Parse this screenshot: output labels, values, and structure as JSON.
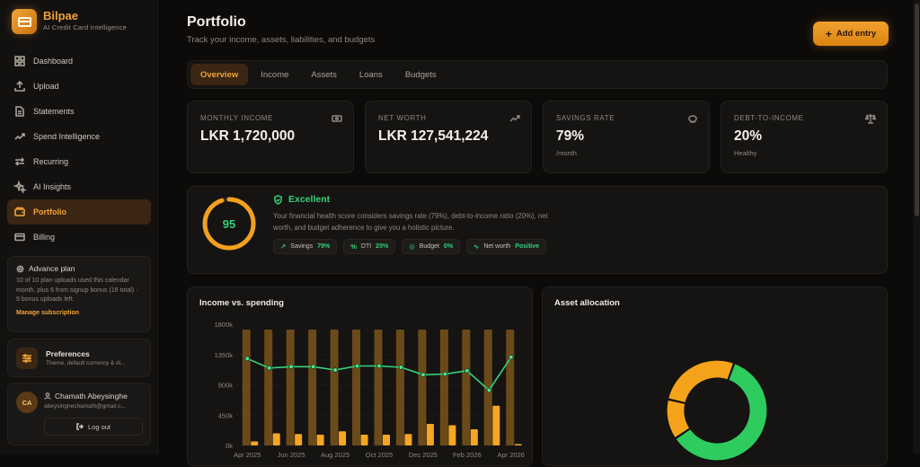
{
  "brand": {
    "name": "Bilpae",
    "tagline": "AI Credit Card Intelligence"
  },
  "nav": [
    {
      "label": "Dashboard",
      "icon": "grid-icon",
      "active": false
    },
    {
      "label": "Upload",
      "icon": "upload-icon",
      "active": false
    },
    {
      "label": "Statements",
      "icon": "document-icon",
      "active": false
    },
    {
      "label": "Spend Intelligence",
      "icon": "trend-icon",
      "active": false
    },
    {
      "label": "Recurring",
      "icon": "repeat-icon",
      "active": false
    },
    {
      "label": "AI Insights",
      "icon": "sparkle-icon",
      "active": false
    },
    {
      "label": "Portfolio",
      "icon": "wallet-icon",
      "active": true
    },
    {
      "label": "Billing",
      "icon": "card-icon",
      "active": false
    }
  ],
  "plan": {
    "title": "Advance plan",
    "description": "10 of 10 plan uploads used this calendar month, plus 6 from signup bonus (16 total) · 9 bonus uploads left.",
    "link": "Manage subscription"
  },
  "preferences": {
    "title": "Preferences",
    "subtitle": "Theme, default currency & di..."
  },
  "user": {
    "initials": "CA",
    "name": "Chamath Abeysinghe",
    "email": "abeysinghechamath@gmail.c...",
    "logout": "Log out"
  },
  "header": {
    "title": "Portfolio",
    "subtitle": "Track your income, assets, liabilities, and budgets",
    "add_button": "Add entry"
  },
  "tabs": [
    "Overview",
    "Income",
    "Assets",
    "Loans",
    "Budgets"
  ],
  "stats": [
    {
      "label": "MONTHLY INCOME",
      "value": "LKR 1,720,000",
      "note": "",
      "icon": "banknote-icon"
    },
    {
      "label": "NET WORTH",
      "value": "LKR 127,541,224",
      "note": "",
      "icon": "trending-up-icon"
    },
    {
      "label": "SAVINGS RATE",
      "value": "79%",
      "note": "/month",
      "icon": "piggy-bank-icon"
    },
    {
      "label": "DEBT-TO-INCOME",
      "value": "20%",
      "note": "Healthy",
      "icon": "scale-icon"
    }
  ],
  "health": {
    "score": "95",
    "score_fraction": 0.95,
    "title": "Excellent",
    "description": "Your financial health score considers savings rate (79%), debt-to-income ratio (20%), net worth, and budget adherence to give you a holistic picture.",
    "pills": [
      {
        "icon": "↗",
        "label": "Savings",
        "value": "79%"
      },
      {
        "icon": "%",
        "label": "DTI",
        "value": "20%"
      },
      {
        "icon": "◎",
        "label": "Budget",
        "value": "0%"
      },
      {
        "icon": "∿",
        "label": "Net worth",
        "value": "Positive"
      }
    ]
  },
  "colors": {
    "accent": "#f2a33a",
    "good": "#2fd37a",
    "bar_income": "#6b4a1a",
    "bar_spend": "#f5a623",
    "donut_a": "#2ecc5e",
    "donut_b": "#f5a31a"
  },
  "chart_data": [
    {
      "type": "bar",
      "title": "Income vs. spending",
      "ylim": [
        0,
        1800
      ],
      "y_ticks": [
        "0k",
        "450k",
        "900k",
        "1350k",
        "1800k"
      ],
      "x_tick_labels": [
        "Apr 2025",
        "Jun 2025",
        "Aug 2025",
        "Oct 2025",
        "Dec 2025",
        "Feb 2026",
        "Apr 2026"
      ],
      "categories": [
        "Apr 2025",
        "May 2025",
        "Jun 2025",
        "Jul 2025",
        "Aug 2025",
        "Sep 2025",
        "Oct 2025",
        "Nov 2025",
        "Dec 2025",
        "Jan 2026",
        "Feb 2026",
        "Mar 2026",
        "Apr 2026"
      ],
      "series": [
        {
          "kind": "bar",
          "values": [
            1720,
            1720,
            1720,
            1720,
            1720,
            1720,
            1720,
            1720,
            1720,
            1720,
            1720,
            1720,
            1720
          ]
        },
        {
          "kind": "bar",
          "values": [
            60,
            180,
            170,
            160,
            210,
            160,
            160,
            170,
            320,
            300,
            240,
            590,
            20
          ]
        },
        {
          "kind": "line",
          "values": [
            1290,
            1150,
            1170,
            1170,
            1120,
            1180,
            1180,
            1160,
            1050,
            1060,
            1110,
            820,
            1310
          ]
        }
      ]
    },
    {
      "type": "pie",
      "title": "Asset allocation",
      "donut": true,
      "slices": [
        0.6,
        0.13,
        0.27
      ]
    }
  ]
}
